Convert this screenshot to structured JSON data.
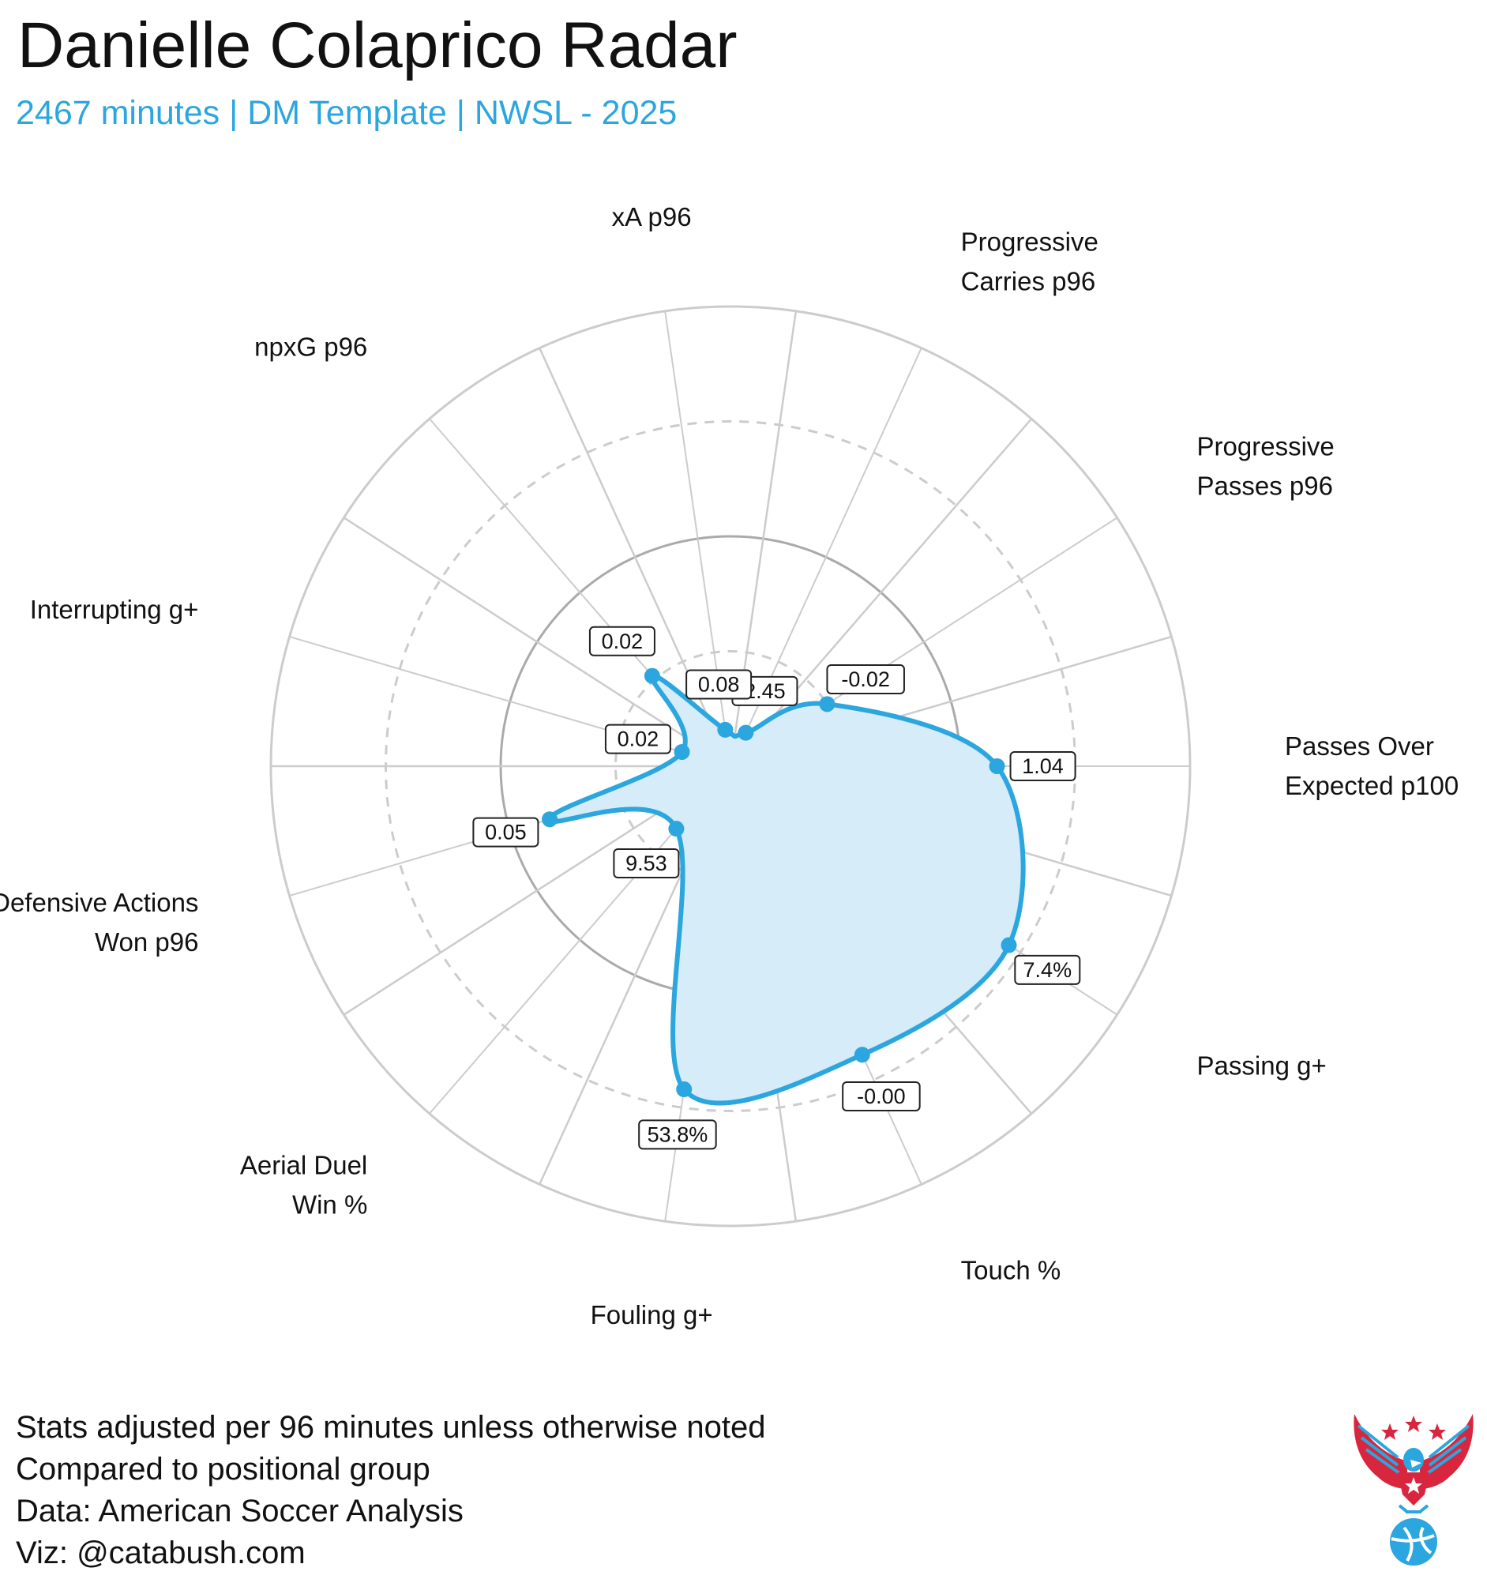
{
  "header": {
    "title": "Danielle Colaprico Radar",
    "subtitle": "2467 minutes | DM Template | NWSL - 2025"
  },
  "footer": {
    "lines": [
      "Stats adjusted per 96 minutes unless otherwise noted",
      "Compared to positional group",
      "Data: American Soccer Analysis",
      "Viz: @catabush.com"
    ]
  },
  "colors": {
    "accent": "#2ba6de",
    "fill": "#d6ecf8",
    "grid": "#cccccc",
    "text": "#111111"
  },
  "chart_data": {
    "type": "radar",
    "title": "Danielle Colaprico Radar",
    "scale": "percentile",
    "range": [
      0,
      100
    ],
    "rings": [
      25,
      50,
      75,
      100
    ],
    "axes": [
      {
        "label_lines": [
          "Passes Over",
          "Expected p100"
        ],
        "value_label": "1.04",
        "percentile": 58
      },
      {
        "label_lines": [
          "Progressive",
          "Passes p96"
        ],
        "value_label": "-0.02",
        "percentile": 25
      },
      {
        "label_lines": [
          "Progressive",
          "Carries p96"
        ],
        "value_label": "2.45",
        "percentile": 8
      },
      {
        "label_lines": [
          "xA p96"
        ],
        "value_label": "0.08",
        "percentile": 8
      },
      {
        "label_lines": [
          "npxG p96"
        ],
        "value_label": "0.02",
        "percentile": 26
      },
      {
        "label_lines": [
          "Interrupting g+"
        ],
        "value_label": "0.02",
        "percentile": 11
      },
      {
        "label_lines": [
          "Defensive Actions",
          "Won p96"
        ],
        "value_label": "0.05",
        "percentile": 41
      },
      {
        "label_lines": [
          "Aerial Duel",
          "Win %"
        ],
        "value_label": "9.53",
        "percentile": 18
      },
      {
        "label_lines": [
          "Fouling g+"
        ],
        "value_label": "53.8%",
        "percentile": 71
      },
      {
        "label_lines": [
          "Touch %"
        ],
        "value_label": "-0.00",
        "percentile": 69
      },
      {
        "label_lines": [
          "Passing g+"
        ],
        "value_label": "7.4%",
        "percentile": 72
      }
    ]
  },
  "logo": {
    "name": "eagle-soccer-logo"
  }
}
